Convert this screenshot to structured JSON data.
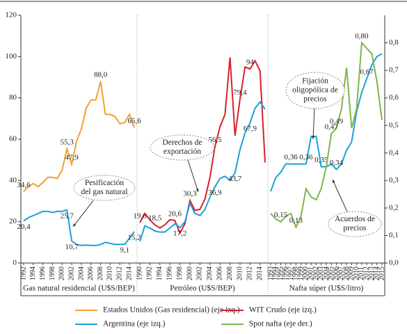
{
  "chart_data": [
    {
      "type": "line",
      "xlabel": "Gas natural residencial (U$S/BEP)",
      "ylim": [
        0,
        120
      ],
      "yticks": [
        0,
        20,
        40,
        60,
        80,
        100,
        120
      ],
      "x": [
        1992,
        1993,
        1994,
        1995,
        1996,
        1997,
        1998,
        1999,
        2000,
        2001,
        2002,
        2003,
        2004,
        2005,
        2006,
        2007,
        2008,
        2009,
        2010,
        2011,
        2012,
        2013,
        2014,
        2015
      ],
      "xticks": [
        1992,
        1994,
        1996,
        1998,
        2000,
        2002,
        2004,
        2006,
        2008,
        2010,
        2012,
        2014
      ],
      "series": [
        {
          "name": "Estados Unidos (Gas residencial) (eje izq.)",
          "color": "#f0a030",
          "values": [
            34.6,
            37,
            38.5,
            37,
            39,
            41.5,
            41.5,
            41,
            45,
            55.3,
            47.9,
            59,
            65,
            75,
            79,
            79,
            88.0,
            72,
            72,
            71,
            67.5,
            68,
            72,
            65.6
          ],
          "value_labels": [
            "34,6",
            null,
            null,
            null,
            null,
            null,
            null,
            null,
            null,
            "55,3",
            "47,9",
            null,
            null,
            null,
            null,
            null,
            "88,0",
            null,
            null,
            null,
            null,
            null,
            null,
            "65,6"
          ]
        },
        {
          "name": "Argentina (eje izq.)",
          "color": "#1ba1d8",
          "values": [
            20.4,
            22,
            23,
            24,
            25,
            25,
            24.5,
            25,
            25,
            25.7,
            10.7,
            9,
            8.5,
            8.7,
            8.5,
            8.5,
            9,
            10,
            9.5,
            9,
            9,
            9.1,
            12,
            15.2
          ],
          "value_labels": [
            "20,4",
            null,
            null,
            null,
            null,
            null,
            null,
            null,
            null,
            "25,7",
            "10,7",
            null,
            null,
            null,
            null,
            null,
            null,
            null,
            null,
            null,
            null,
            "9,1",
            null,
            "15,2"
          ]
        }
      ],
      "annotations": [
        {
          "lines": [
            "Pesificación",
            "del gas natural"
          ]
        }
      ]
    },
    {
      "type": "line",
      "xlabel": "Petróleo (U$S/BEP)",
      "x": [
        1990,
        1991,
        1992,
        1993,
        1994,
        1995,
        1996,
        1997,
        1998,
        1999,
        2000,
        2001,
        2002,
        2003,
        2004,
        2005,
        2006,
        2007,
        2008,
        2009,
        2010,
        2011,
        2012,
        2013,
        2014,
        2015
      ],
      "xticks": [
        1990,
        1992,
        1994,
        1996,
        1998,
        2000,
        2002,
        2004,
        2006,
        2008,
        2010,
        2012,
        2014
      ],
      "series": [
        {
          "name": "WIT Crudo (eje izq.)",
          "color": "#d7202a",
          "values": [
            19.6,
            24,
            21,
            18.5,
            17,
            18.5,
            21,
            20.6,
            14.5,
            19,
            30.3,
            25.5,
            26,
            31,
            41.5,
            56.5,
            66,
            72,
            99.6,
            61.7,
            79.4,
            95,
            94,
            98,
            93,
            48.7
          ],
          "value_labels": [
            "19,6",
            null,
            null,
            "18,5",
            null,
            null,
            null,
            "20,6",
            null,
            null,
            "30,3",
            null,
            null,
            null,
            null,
            "56,5",
            null,
            null,
            null,
            null,
            "79,4",
            null,
            "94",
            null,
            null,
            null
          ]
        },
        {
          "name": "Argentina (eje izq.)",
          "color": "#1ba1d8",
          "values": [
            10.5,
            18,
            17,
            15.5,
            15,
            15,
            17,
            19,
            17.2,
            20,
            29,
            24,
            23,
            26,
            32,
            36.9,
            41,
            42,
            40,
            43.7,
            55,
            63,
            67.9,
            75,
            78,
            74.5
          ],
          "value_labels": [
            null,
            null,
            null,
            null,
            null,
            null,
            null,
            null,
            "17,2",
            null,
            null,
            null,
            null,
            null,
            null,
            "36,9",
            null,
            null,
            null,
            "43,7",
            null,
            null,
            "67,9",
            null,
            null,
            null
          ]
        }
      ],
      "annotations": [
        {
          "lines": [
            "Derechos de",
            "exportación"
          ]
        }
      ]
    },
    {
      "type": "line",
      "xlabel": "Nafta súper (U$S/litro)",
      "y2lim": [
        0,
        0.9
      ],
      "y2ticks": [
        {
          "value": 0,
          "label": "0,0"
        },
        {
          "value": 0.1,
          "label": "0,1"
        },
        {
          "value": 0.2,
          "label": "0,2"
        },
        {
          "value": 0.3,
          "label": "0,3"
        },
        {
          "value": 0.4,
          "label": "0,4"
        },
        {
          "value": 0.5,
          "label": "0,5"
        },
        {
          "value": 0.6,
          "label": "0,6"
        },
        {
          "value": 0.7,
          "label": "0,7"
        },
        {
          "value": 0.8,
          "label": "0,8"
        }
      ],
      "x": [
        1993,
        1994,
        1995,
        1996,
        1997,
        1998,
        1999,
        2000,
        2001,
        2002,
        2003,
        2004,
        2005,
        2006,
        2007,
        2008,
        2009,
        2010,
        2011,
        2012,
        2013,
        2014,
        2015
      ],
      "xticks": [
        1993,
        1994,
        1995,
        1996,
        1997,
        1998,
        1999,
        2000,
        2001,
        2002,
        2003,
        2004,
        2005,
        2006,
        2007,
        2008,
        2009,
        2010,
        2011,
        2012,
        2013,
        2014,
        2015
      ],
      "series": [
        {
          "name": "Argentina (eje izq.)",
          "color": "#1ba1d8",
          "axis": "y2",
          "values": [
            0.26,
            0.31,
            0.33,
            0.36,
            0.36,
            0.36,
            0.36,
            0.36,
            0.46,
            0.46,
            0.35,
            0.35,
            0.36,
            0.34,
            0.36,
            0.41,
            0.44,
            0.55,
            0.62,
            0.67,
            0.72,
            0.75,
            0.76
          ],
          "value_labels": [
            null,
            null,
            null,
            null,
            "0,36",
            null,
            null,
            "0,36",
            null,
            null,
            "0,35",
            null,
            null,
            "0,34",
            null,
            null,
            null,
            null,
            null,
            "0,67",
            null,
            null,
            null
          ]
        },
        {
          "name": "Spot nafta (eje der.)",
          "color": "#7ab648",
          "axis": "y2",
          "values": [
            0.18,
            0.16,
            0.15,
            0.17,
            0.18,
            0.13,
            0.17,
            0.27,
            0.24,
            0.23,
            0.27,
            0.35,
            0.47,
            0.49,
            0.56,
            0.71,
            0.49,
            0.56,
            0.8,
            0.78,
            0.76,
            0.66,
            0.52
          ],
          "value_labels": [
            null,
            null,
            "0,15",
            null,
            null,
            "0,13",
            null,
            null,
            null,
            null,
            null,
            null,
            "0,47",
            "0,49",
            null,
            null,
            null,
            null,
            "0,80",
            null,
            null,
            null,
            null
          ]
        }
      ],
      "annotations": [
        {
          "lines": [
            "Fijación",
            "oligopólica de",
            "precios"
          ]
        },
        {
          "lines": [
            "Acuerdos de",
            "precios"
          ]
        }
      ]
    }
  ]
}
